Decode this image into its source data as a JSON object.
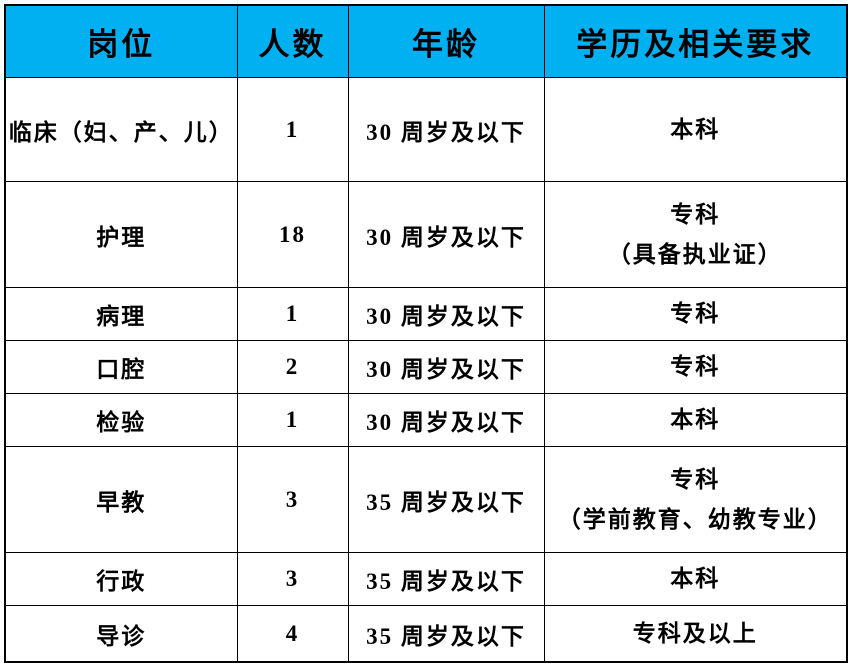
{
  "accent_color": "#00B0F0",
  "border_color": "#000000",
  "text_color": "#000000",
  "table": {
    "headers": [
      "岗位",
      "人数",
      "年龄",
      "学历及相关要求"
    ],
    "rows": [
      {
        "position": "临床（妇、产、儿）",
        "count": "1",
        "age": "30 周岁及以下",
        "requirement": [
          "本科"
        ]
      },
      {
        "position": "护理",
        "count": "18",
        "age": "30 周岁及以下",
        "requirement": [
          "专科",
          "（具备执业证）"
        ]
      },
      {
        "position": "病理",
        "count": "1",
        "age": "30 周岁及以下",
        "requirement": [
          "专科"
        ]
      },
      {
        "position": "口腔",
        "count": "2",
        "age": "30 周岁及以下",
        "requirement": [
          "专科"
        ]
      },
      {
        "position": "检验",
        "count": "1",
        "age": "30 周岁及以下",
        "requirement": [
          "本科"
        ]
      },
      {
        "position": "早教",
        "count": "3",
        "age": "35 周岁及以下",
        "requirement": [
          "专科",
          "（学前教育、幼教专业）"
        ]
      },
      {
        "position": "行政",
        "count": "3",
        "age": "35 周岁及以下",
        "requirement": [
          "本科"
        ]
      },
      {
        "position": "导诊",
        "count": "4",
        "age": "35 周岁及以下",
        "requirement": [
          "专科及以上"
        ]
      }
    ]
  },
  "chart_data": {
    "type": "table",
    "title": "",
    "columns": [
      "岗位",
      "人数",
      "年龄",
      "学历及相关要求"
    ],
    "rows": [
      [
        "临床（妇、产、儿）",
        "1",
        "30 周岁及以下",
        "本科"
      ],
      [
        "护理",
        "18",
        "30 周岁及以下",
        "专科（具备执业证）"
      ],
      [
        "病理",
        "1",
        "30 周岁及以下",
        "专科"
      ],
      [
        "口腔",
        "2",
        "30 周岁及以下",
        "专科"
      ],
      [
        "检验",
        "1",
        "30 周岁及以下",
        "本科"
      ],
      [
        "早教",
        "3",
        "35 周岁及以下",
        "专科（学前教育、幼教专业）"
      ],
      [
        "行政",
        "3",
        "35 周岁及以下",
        "本科"
      ],
      [
        "导诊",
        "4",
        "35 周岁及以下",
        "专科及以上"
      ]
    ],
    "layout": {
      "header_background": "#00B0F0",
      "header_text_color": "#000000",
      "grid": true,
      "grid_color": "#000000"
    }
  }
}
